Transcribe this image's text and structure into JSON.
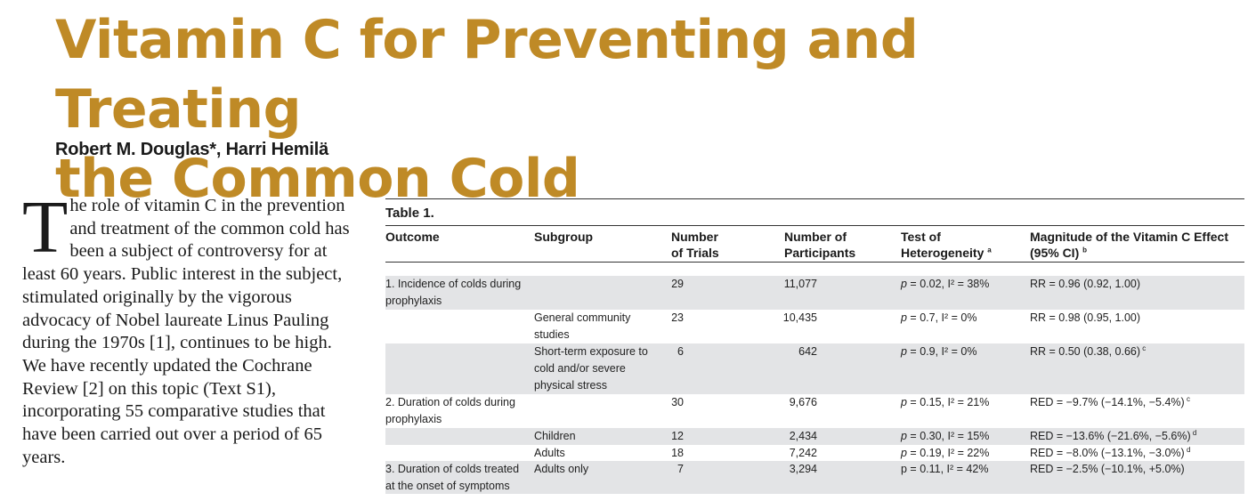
{
  "article": {
    "title_line1": "Vitamin C for Preventing and Treating",
    "title_line2": "the Common Cold",
    "authors": "Robert M. Douglas*, Harri Hemilä",
    "title_color": "#bf8a26"
  },
  "body": {
    "dropcap": "T",
    "text": "he role of vitamin C in the prevention and treatment of the common cold has been a subject of controversy for at least 60 years. Public interest in the subject, stimulated originally by the vigorous advocacy of Nobel laureate Linus Pauling during the 1970s [1], continues to be high. We have recently updated the Cochrane Review [2] on this topic (Text S1), incorporating 55 comparative studies that have been carried out over a period of 65 years."
  },
  "table": {
    "label": "Table 1.",
    "headers": {
      "outcome": "Outcome",
      "subgroup": "Subgroup",
      "trials_1": "Number",
      "trials_2": "of Trials",
      "participants_1": "Number of",
      "participants_2": "Participants",
      "het_1": "Test of",
      "het_2": "Heterogeneity",
      "het_note": "a",
      "mag_1": "Magnitude of the Vitamin C Effect",
      "mag_2": "(95% CI)",
      "mag_note": "b"
    },
    "rows": [
      {
        "outcome": "1. Incidence of colds during prophylaxis",
        "subgroup": "",
        "trials": "29",
        "participants": "11,077",
        "p": "p",
        "het": " = 0.02, I² = 38%",
        "effect": "RR = 0.96 (0.92, 1.00)",
        "note": ""
      },
      {
        "outcome": "",
        "subgroup": "General community studies",
        "trials": "23",
        "participants": "10,435",
        "p": "p",
        "het": " = 0.7, I² = 0%",
        "effect": "RR = 0.98 (0.95, 1.00)",
        "note": ""
      },
      {
        "outcome": "",
        "subgroup": "Short-term exposure to cold and/or severe physical stress",
        "trials": "6",
        "participants": "642",
        "p": "p",
        "het": " = 0.9, I² = 0%",
        "effect": "RR = 0.50 (0.38, 0.66)",
        "note": "c"
      },
      {
        "outcome": "2. Duration of colds during prophylaxis",
        "subgroup": "",
        "trials": "30",
        "participants": "9,676",
        "p": "p",
        "het": " = 0.15, I² = 21%",
        "effect": "RED = −9.7% (−14.1%, −5.4%)",
        "note": "c"
      },
      {
        "outcome": "",
        "subgroup": "Children",
        "trials": "12",
        "participants": "2,434",
        "p": "p",
        "het": " = 0.30, I² = 15%",
        "effect": "RED = −13.6% (−21.6%, −5.6%)",
        "note": "d"
      },
      {
        "outcome": "",
        "subgroup": "Adults",
        "trials": "18",
        "participants": "7,242",
        "p": "p",
        "het": " = 0.19, I² = 22%",
        "effect": "RED = −8.0% (−13.1%, −3.0%)",
        "note": "d"
      },
      {
        "outcome": "3. Duration of colds treated at the onset of symptoms",
        "subgroup": "Adults only",
        "trials": "7",
        "participants": "3,294",
        "p": "p",
        "het": " = 0.11, I² = 42%",
        "effect": "RED = −2.5% (−10.1%, +5.0%)",
        "note": ""
      }
    ],
    "shade_color": "#e3e4e6"
  }
}
